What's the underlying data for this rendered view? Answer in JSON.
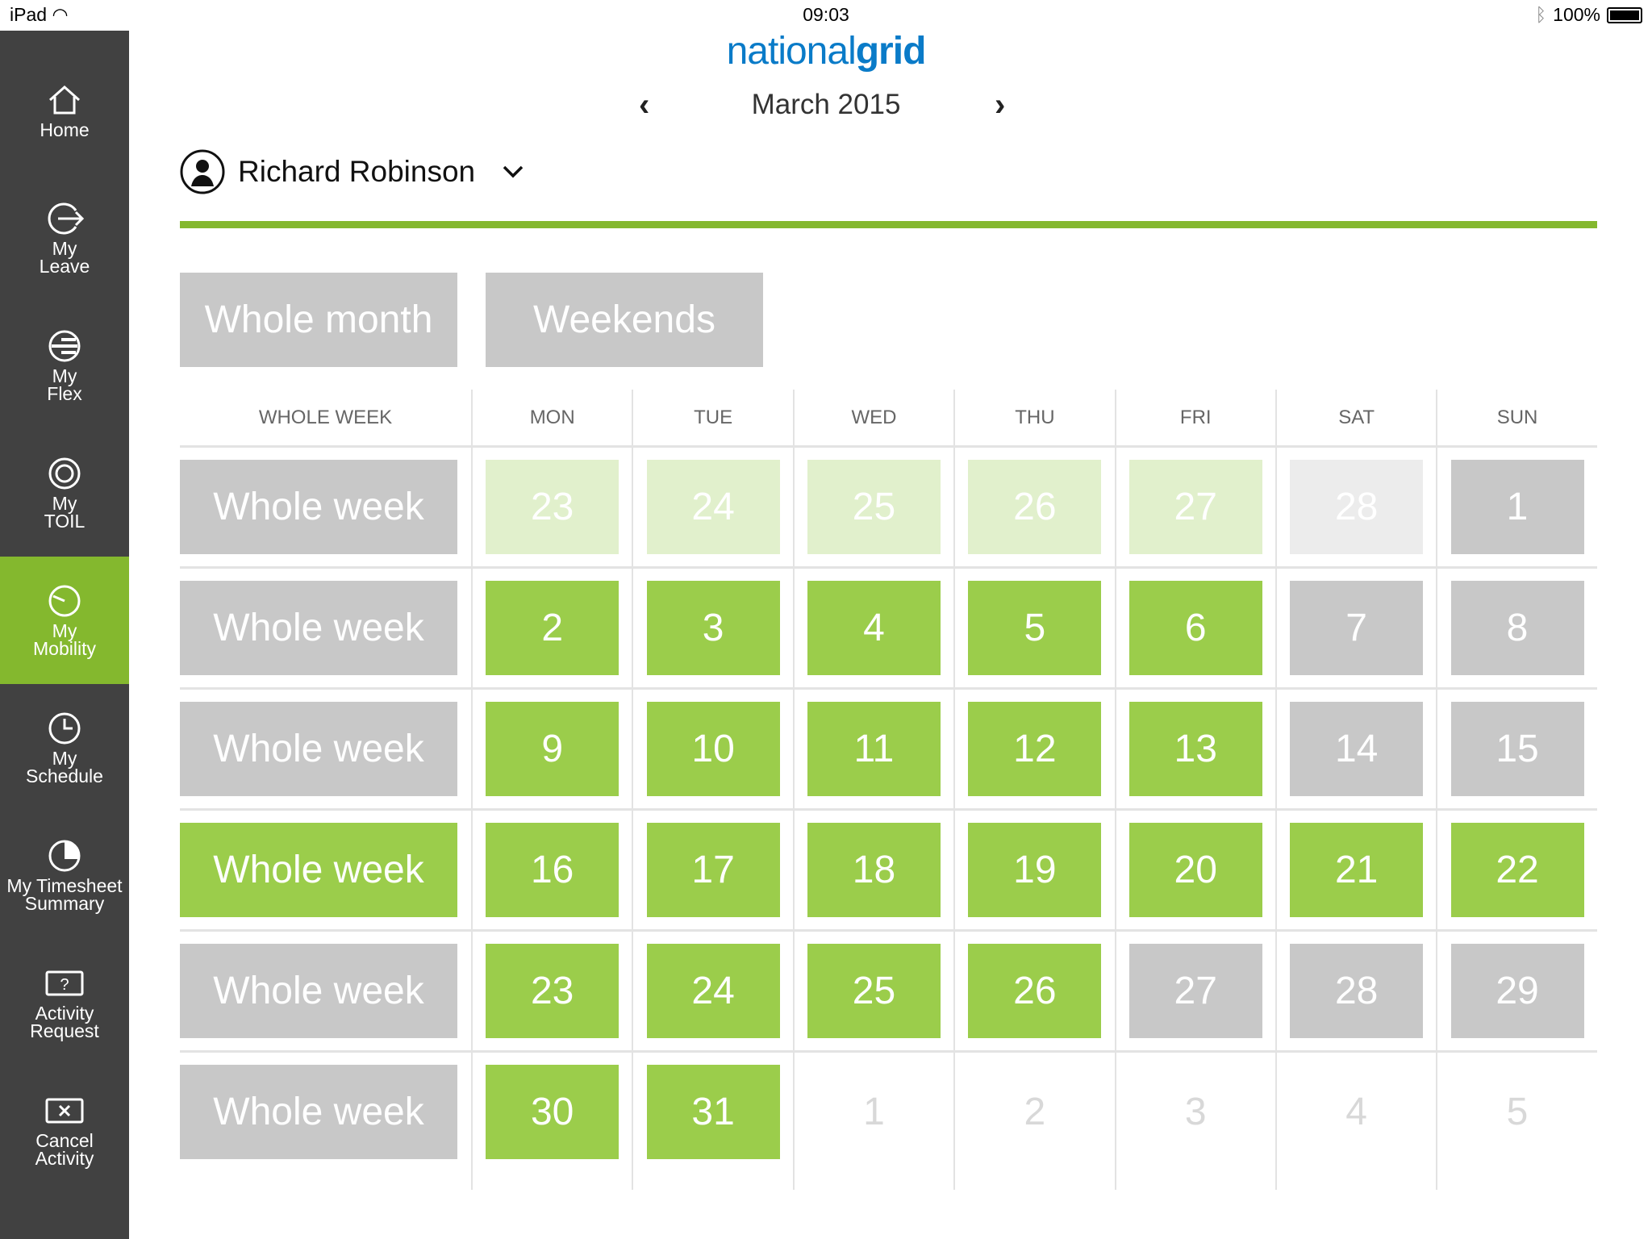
{
  "status": {
    "device": "iPad",
    "time": "09:03",
    "battery": "100%"
  },
  "sidebar": {
    "items": [
      {
        "label": "Home",
        "icon": "home-icon"
      },
      {
        "label": "My\nLeave",
        "icon": "leave-icon"
      },
      {
        "label": "My\nFlex",
        "icon": "flex-icon"
      },
      {
        "label": "My\nTOIL",
        "icon": "toil-icon"
      },
      {
        "label": "My\nMobility",
        "icon": "mobility-icon",
        "active": true
      },
      {
        "label": "My\nSchedule",
        "icon": "clock-icon"
      },
      {
        "label": "My Timesheet\nSummary",
        "icon": "pie-icon"
      },
      {
        "label": "Activity\nRequest",
        "icon": "question-icon"
      },
      {
        "label": "Cancel\nActivity",
        "icon": "cancel-icon"
      }
    ]
  },
  "header": {
    "logo_light": "national",
    "logo_bold": "grid",
    "month": "March 2015",
    "prev": "‹",
    "next": "›"
  },
  "user": {
    "name": "Richard Robinson"
  },
  "buttons": {
    "whole_month": "Whole month",
    "weekends": "Weekends"
  },
  "colors": {
    "green": "#9bcd4b",
    "accent": "#84b82e",
    "grey": "#c8c8c8",
    "pale_green": "#e1f0cc",
    "sidebar": "#414141",
    "logo": "#0a7bc8"
  },
  "calendar": {
    "headers": [
      "WHOLE WEEK",
      "MON",
      "TUE",
      "WED",
      "THU",
      "FRI",
      "SAT",
      "SUN"
    ],
    "weeks": [
      {
        "label": "Whole week",
        "state": "grey",
        "days": [
          [
            "23",
            "pale"
          ],
          [
            "24",
            "pale"
          ],
          [
            "25",
            "pale"
          ],
          [
            "26",
            "pale"
          ],
          [
            "27",
            "pale"
          ],
          [
            "28",
            "light"
          ],
          [
            "1",
            "grey"
          ]
        ]
      },
      {
        "label": "Whole week",
        "state": "grey",
        "days": [
          [
            "2",
            "green"
          ],
          [
            "3",
            "green"
          ],
          [
            "4",
            "green"
          ],
          [
            "5",
            "green"
          ],
          [
            "6",
            "green"
          ],
          [
            "7",
            "grey"
          ],
          [
            "8",
            "grey"
          ]
        ]
      },
      {
        "label": "Whole week",
        "state": "grey",
        "days": [
          [
            "9",
            "green"
          ],
          [
            "10",
            "green"
          ],
          [
            "11",
            "green"
          ],
          [
            "12",
            "green"
          ],
          [
            "13",
            "green"
          ],
          [
            "14",
            "grey"
          ],
          [
            "15",
            "grey"
          ]
        ]
      },
      {
        "label": "Whole week",
        "state": "green",
        "days": [
          [
            "16",
            "green"
          ],
          [
            "17",
            "green"
          ],
          [
            "18",
            "green"
          ],
          [
            "19",
            "green"
          ],
          [
            "20",
            "green"
          ],
          [
            "21",
            "green"
          ],
          [
            "22",
            "green"
          ]
        ]
      },
      {
        "label": "Whole week",
        "state": "grey",
        "days": [
          [
            "23",
            "green"
          ],
          [
            "24",
            "green"
          ],
          [
            "25",
            "green"
          ],
          [
            "26",
            "green"
          ],
          [
            "27",
            "grey"
          ],
          [
            "28",
            "grey"
          ],
          [
            "29",
            "grey"
          ]
        ]
      },
      {
        "label": "Whole week",
        "state": "grey",
        "days": [
          [
            "30",
            "green"
          ],
          [
            "31",
            "green"
          ],
          [
            "1",
            "empty"
          ],
          [
            "2",
            "empty"
          ],
          [
            "3",
            "empty"
          ],
          [
            "4",
            "empty"
          ],
          [
            "5",
            "empty"
          ]
        ]
      }
    ]
  }
}
